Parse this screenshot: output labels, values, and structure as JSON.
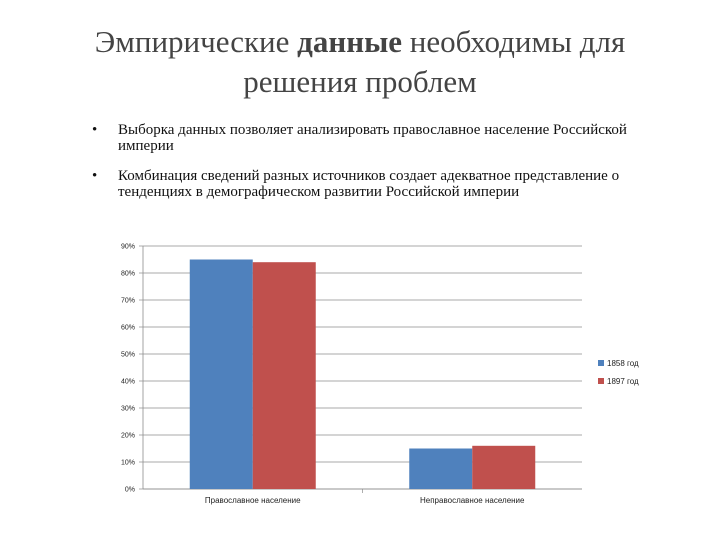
{
  "slide": {
    "title_part1": "Эмпирические",
    "title_bold": "данные",
    "title_part2": "необходимы для решения проблем",
    "bullets": [
      "Выборка данных позволяет анализировать православное население Российской империи",
      "Комбинация сведений разных источников создает адекватное представление о тенденциях в демографическом развитии Российской империи"
    ],
    "bullet_marker": "•"
  },
  "chart_data": {
    "type": "bar",
    "categories": [
      "Православное население",
      "Неправославное население"
    ],
    "series": [
      {
        "name": "1858 год",
        "values": [
          85,
          15
        ],
        "color": "#4f81bd"
      },
      {
        "name": "1897 год",
        "values": [
          84,
          16
        ],
        "color": "#c0504d"
      }
    ],
    "ylim": [
      0,
      90
    ],
    "yticks": [
      0,
      10,
      20,
      30,
      40,
      50,
      60,
      70,
      80,
      90
    ],
    "tick_suffix": "%",
    "grid": true,
    "legend_position": "right",
    "title": "",
    "xlabel": "",
    "ylabel": ""
  }
}
